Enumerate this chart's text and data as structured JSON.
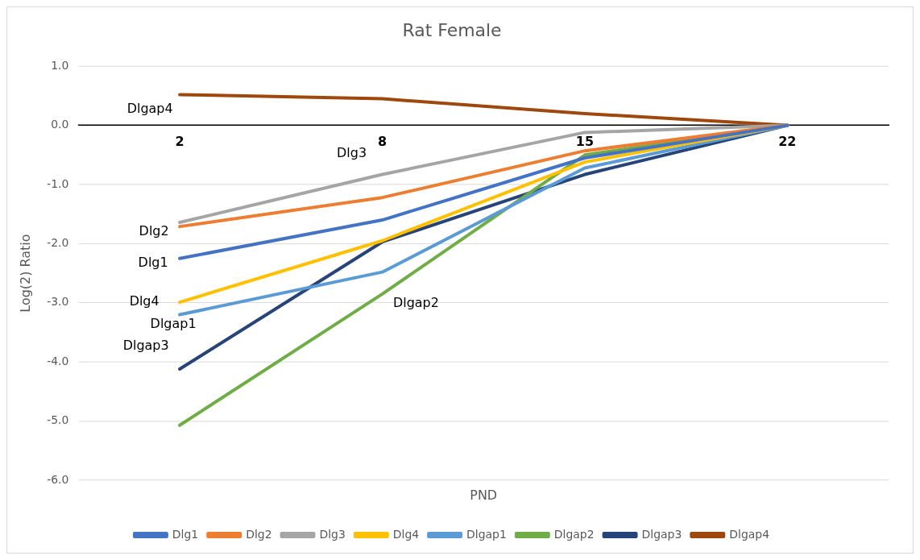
{
  "chart_data": {
    "type": "line",
    "title": "Rat Female",
    "xlabel": "PND",
    "ylabel": "Log(2) Ratio",
    "categories": [
      "2",
      "8",
      "15",
      "22"
    ],
    "series": [
      {
        "name": "Dlg1",
        "color": "#4472c4",
        "values": [
          -2.25,
          -1.6,
          -0.55,
          0
        ]
      },
      {
        "name": "Dlg2",
        "color": "#ed7d31",
        "values": [
          -1.71,
          -1.22,
          -0.43,
          0
        ]
      },
      {
        "name": "Dlg3",
        "color": "#a5a5a5",
        "values": [
          -1.64,
          -0.83,
          -0.12,
          0
        ]
      },
      {
        "name": "Dlg4",
        "color": "#ffc000",
        "values": [
          -2.99,
          -1.95,
          -0.62,
          0
        ]
      },
      {
        "name": "Dlgap1",
        "color": "#5b9bd5",
        "values": [
          -3.2,
          -2.48,
          -0.72,
          0
        ]
      },
      {
        "name": "Dlgap2",
        "color": "#70ad47",
        "values": [
          -5.07,
          -2.85,
          -0.5,
          0
        ]
      },
      {
        "name": "Dlgap3",
        "color": "#264478",
        "values": [
          -4.12,
          -1.97,
          -0.83,
          0
        ]
      },
      {
        "name": "Dlgap4",
        "color": "#9e480e",
        "values": [
          0.52,
          0.45,
          0.2,
          0
        ]
      }
    ],
    "annotations": [
      {
        "text": "Dlgap4",
        "x": "2",
        "y": 0.52
      },
      {
        "text": "Dlg3",
        "x": "8",
        "y": -0.83
      },
      {
        "text": "Dlg2",
        "x": "2",
        "y": -1.71
      },
      {
        "text": "Dlg1",
        "x": "2",
        "y": -2.25
      },
      {
        "text": "Dlg4",
        "x": "2",
        "y": -2.99
      },
      {
        "text": "Dlgap1",
        "x": "2",
        "y": -3.2
      },
      {
        "text": "Dlgap3",
        "x": "2",
        "y": -4.12
      },
      {
        "text": "Dlgap2",
        "x": "8",
        "y": -2.85
      }
    ],
    "ylim": [
      -6,
      1
    ],
    "yticks": [
      {
        "value": -6,
        "label": "-6.0"
      },
      {
        "value": -5,
        "label": "-5.0"
      },
      {
        "value": -4,
        "label": "-4.0"
      },
      {
        "value": -3,
        "label": "-3.0"
      },
      {
        "value": -2,
        "label": "-2.0"
      },
      {
        "value": -1,
        "label": "-1.0"
      },
      {
        "value": 0,
        "label": "0.0"
      },
      {
        "value": 1,
        "label": "1.0"
      }
    ],
    "grid": "y",
    "legend": "bottom",
    "marker": "none",
    "line_style": "solid"
  }
}
